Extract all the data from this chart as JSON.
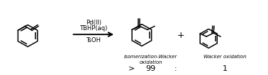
{
  "background_color": "#ffffff",
  "text_color": "#000000",
  "reagents_line1": "Pd(II)",
  "reagents_line2": "TBHP(aq)",
  "reagents_line3": "TsOH",
  "label1": "isomerization-Wacker\noxidation",
  "label2": "Wacker oxidation",
  "ratio_gt": ">",
  "ratio_val1": "99",
  "ratio_colon": ":",
  "ratio_val2": "1",
  "plus_sign": "+",
  "fig_width": 3.78,
  "fig_height": 1.07,
  "dpi": 100
}
